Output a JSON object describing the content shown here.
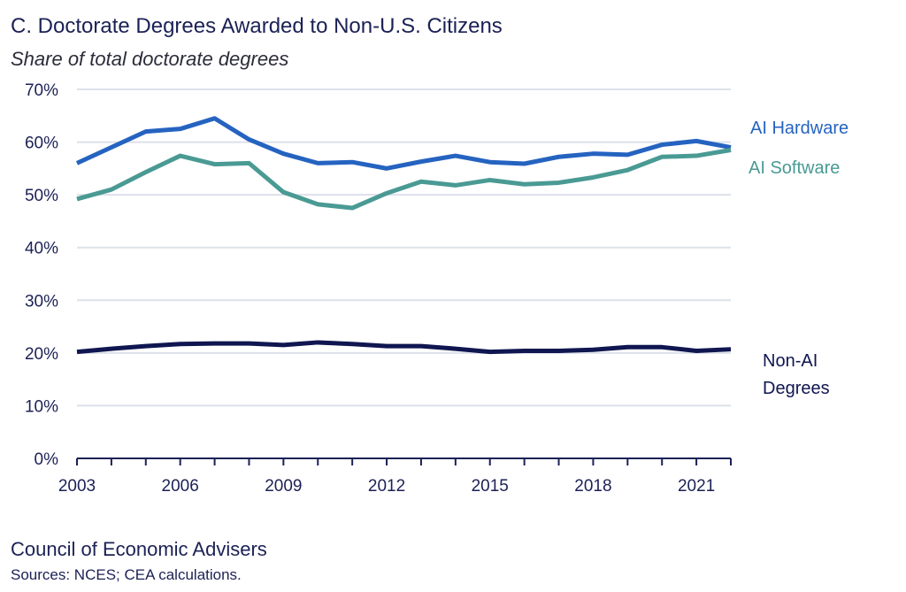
{
  "chart_data": {
    "type": "line",
    "title": "C. Doctorate Degrees Awarded to Non-U.S. Citizens",
    "subtitle": "Share of total doctorate degrees",
    "x": [
      2003,
      2004,
      2005,
      2006,
      2007,
      2008,
      2009,
      2010,
      2011,
      2012,
      2013,
      2014,
      2015,
      2016,
      2017,
      2018,
      2019,
      2020,
      2021,
      2022
    ],
    "xticks": [
      2003,
      2006,
      2009,
      2012,
      2015,
      2018,
      2021
    ],
    "xtick_labels": [
      "2003",
      "2006",
      "2009",
      "2012",
      "2015",
      "2018",
      "2021"
    ],
    "yticks": [
      0,
      10,
      20,
      30,
      40,
      50,
      60,
      70
    ],
    "ytick_labels": [
      "0%",
      "10%",
      "20%",
      "30%",
      "40%",
      "50%",
      "60%",
      "70%"
    ],
    "ylim": [
      0,
      70
    ],
    "grid": true,
    "series": [
      {
        "name": "AI Hardware",
        "label": "AI Hardware",
        "color": "#2563c0",
        "values": [
          56,
          59,
          62,
          62.5,
          64.5,
          60.5,
          57.8,
          56,
          56.2,
          55,
          56.3,
          57.4,
          56.2,
          55.9,
          57.2,
          57.8,
          57.6,
          59.5,
          60.2,
          59
        ]
      },
      {
        "name": "AI Software",
        "label": "AI Software",
        "color": "#4a9a94",
        "values": [
          49.2,
          51,
          54.3,
          57.4,
          55.8,
          56,
          50.5,
          48.2,
          47.5,
          50.3,
          52.5,
          51.8,
          52.8,
          52,
          52.3,
          53.3,
          54.7,
          57.2,
          57.4,
          58.5
        ]
      },
      {
        "name": "Non-AI Degrees",
        "label_lines": [
          "Non-AI",
          "Degrees"
        ],
        "color": "#0f1650",
        "values": [
          20.2,
          20.8,
          21.3,
          21.7,
          21.8,
          21.8,
          21.5,
          22,
          21.7,
          21.3,
          21.3,
          20.8,
          20.2,
          20.4,
          20.4,
          20.6,
          21.1,
          21.1,
          20.4,
          20.7
        ]
      }
    ]
  },
  "footer": {
    "org": "Council of Economic Advisers",
    "sources": "Sources: NCES; CEA calculations."
  }
}
